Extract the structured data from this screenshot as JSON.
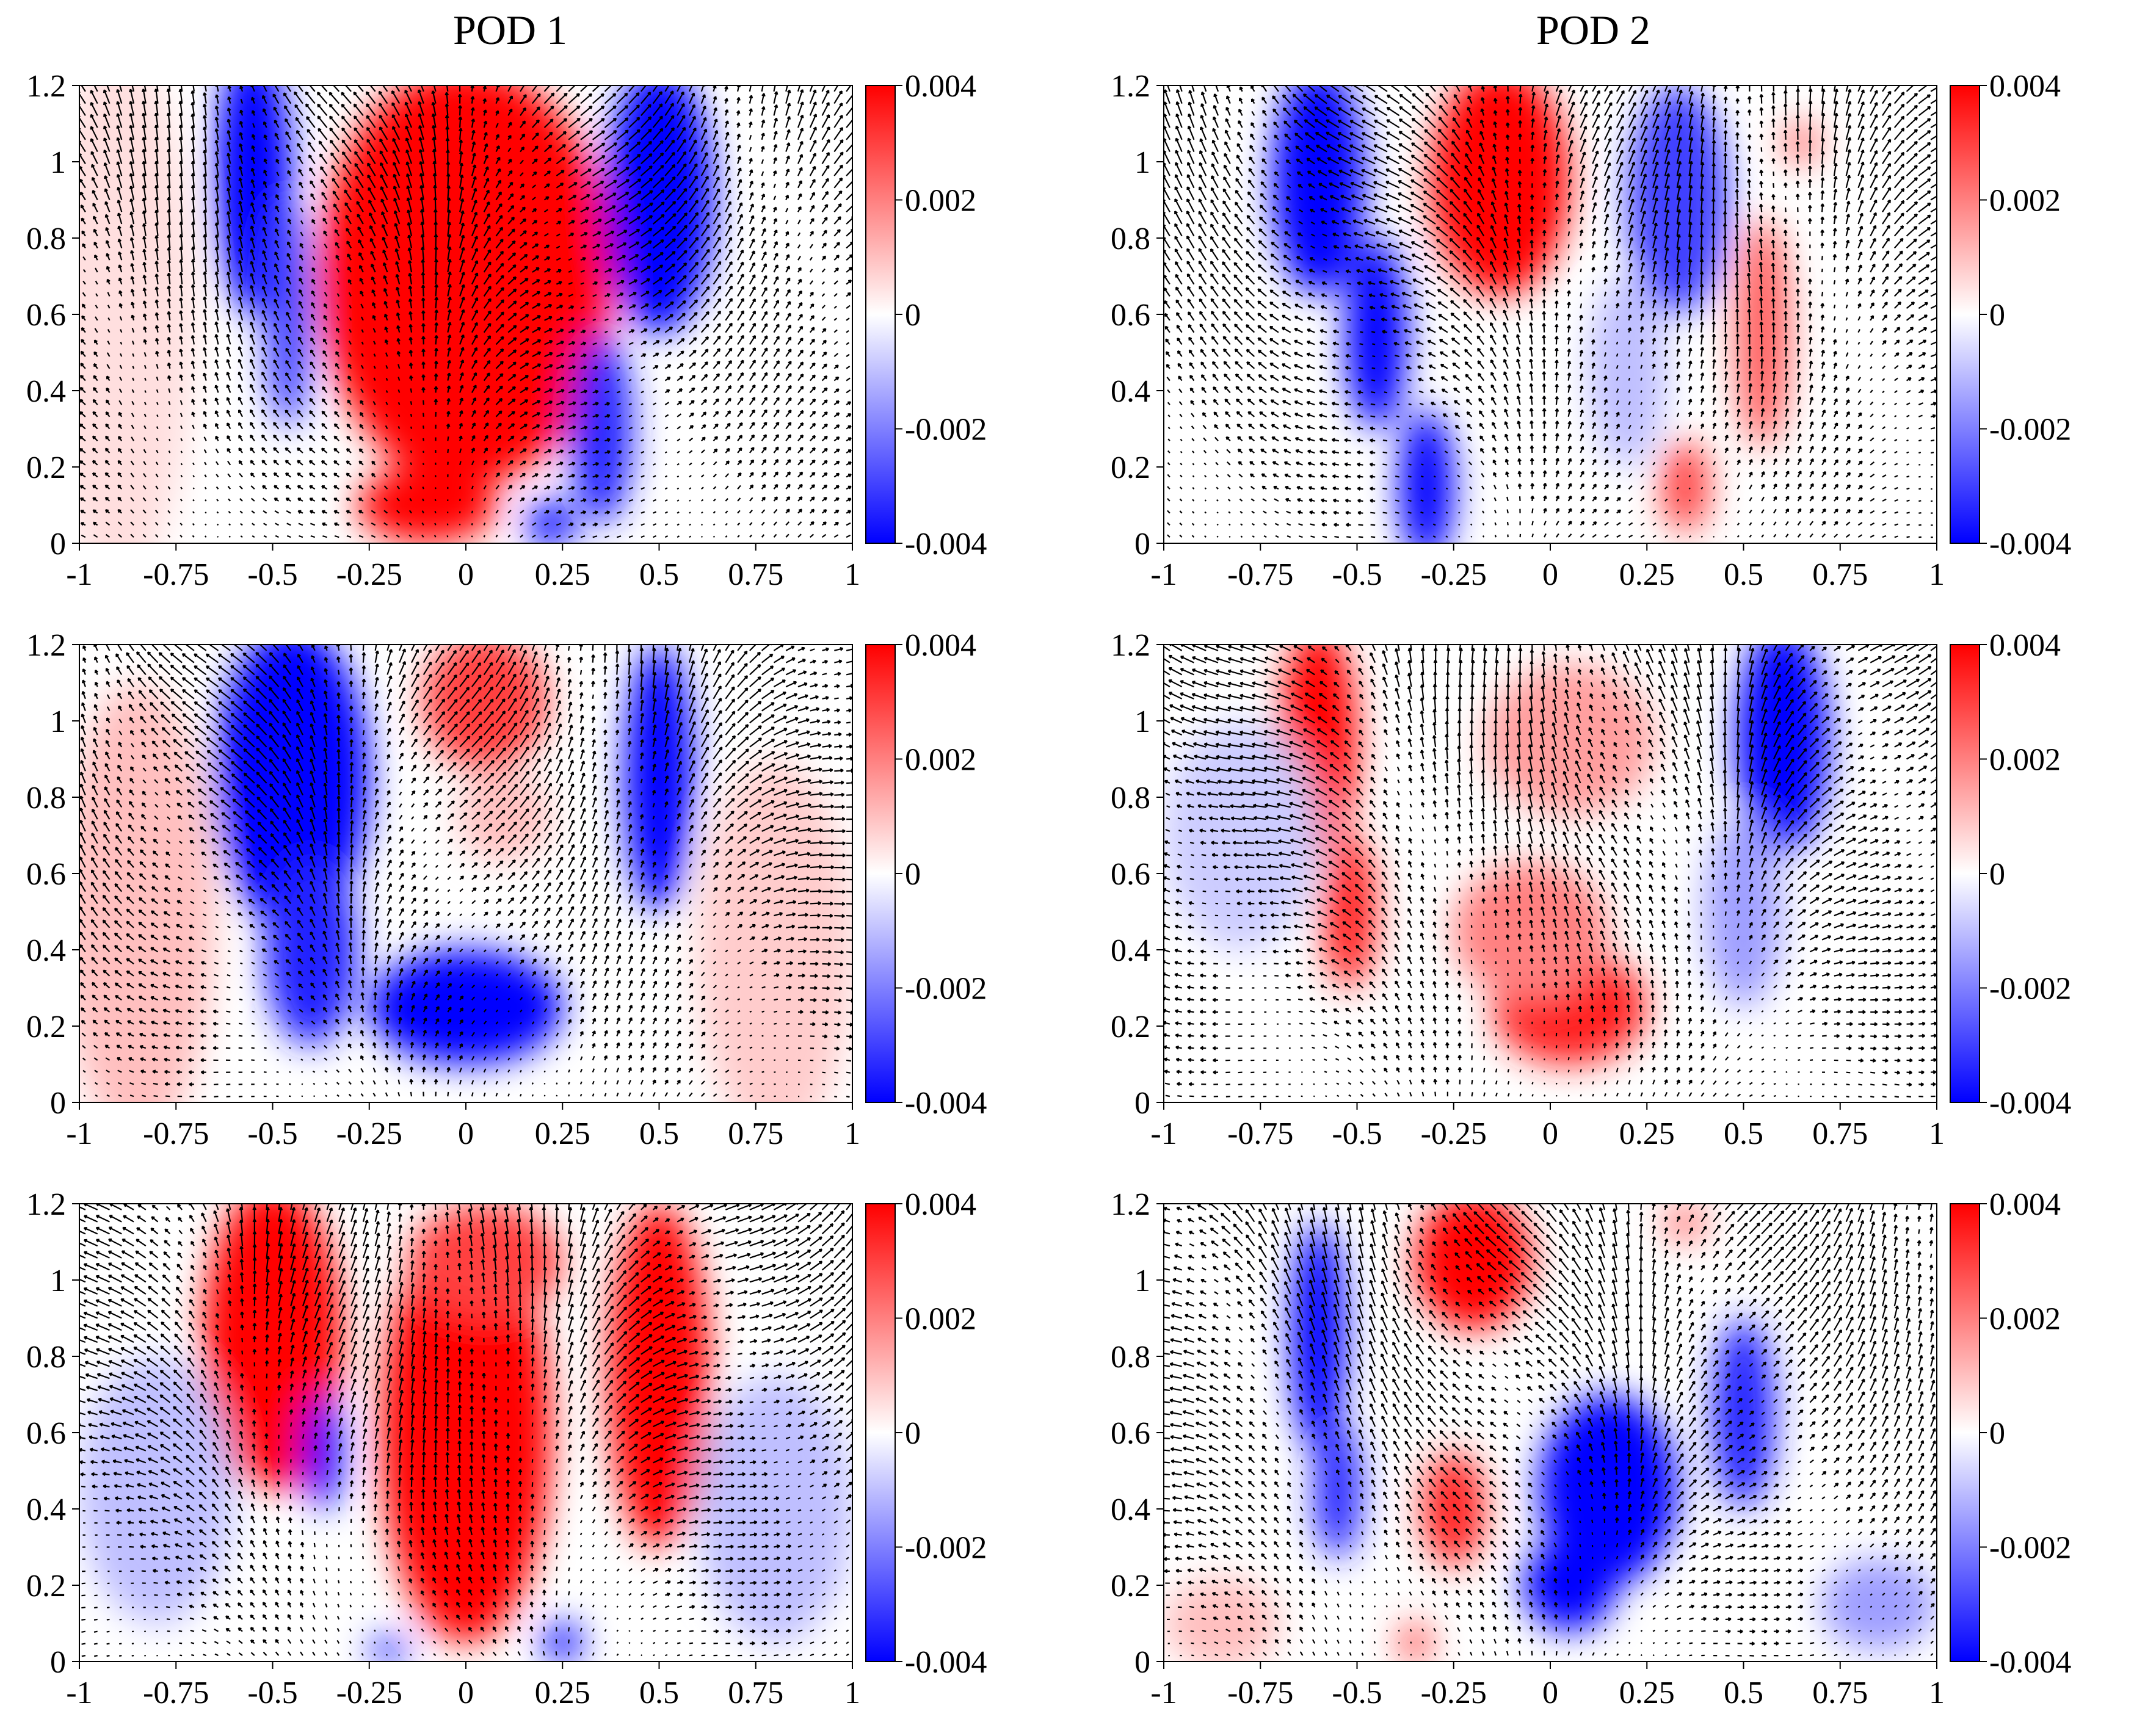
{
  "columns": [
    {
      "title": "POD 1"
    },
    {
      "title": "POD 2"
    }
  ],
  "chart_data": [
    {
      "type": "heatmap",
      "column": "POD 1",
      "row": 1,
      "xlim": [
        -1,
        1
      ],
      "ylim": [
        0,
        1.2
      ],
      "xticks": [
        "-1",
        "-0.75",
        "-0.5",
        "-0.25",
        "0",
        "0.25",
        "0.5",
        "0.75",
        "1"
      ],
      "yticks": [
        "0",
        "0.2",
        "0.4",
        "0.6",
        "0.8",
        "1",
        "1.2"
      ],
      "colorbar": {
        "range": [
          -0.004,
          0.004
        ],
        "ticks": [
          "0.004",
          "0.002",
          "0",
          "-0.002",
          "-0.004"
        ],
        "colormap": [
          "#0000ff",
          "#ffffff",
          "#ff0000"
        ]
      },
      "vectors": true,
      "blobs": [
        {
          "x": 0.0,
          "y": 0.7,
          "w": 0.38,
          "h": 0.55,
          "value": 0.004
        },
        {
          "x": -0.1,
          "y": 0.1,
          "w": 0.18,
          "h": 0.1,
          "value": 0.004
        },
        {
          "x": -0.55,
          "y": 0.95,
          "w": 0.1,
          "h": 0.35,
          "value": -0.004
        },
        {
          "x": -0.46,
          "y": 0.6,
          "w": 0.06,
          "h": 0.3,
          "value": -0.003
        },
        {
          "x": 0.5,
          "y": 0.9,
          "w": 0.14,
          "h": 0.35,
          "value": -0.004
        },
        {
          "x": 0.35,
          "y": 0.3,
          "w": 0.08,
          "h": 0.25,
          "value": -0.0035
        },
        {
          "x": 0.22,
          "y": 0.05,
          "w": 0.06,
          "h": 0.06,
          "value": -0.004
        },
        {
          "x": -0.9,
          "y": 0.6,
          "w": 0.2,
          "h": 0.7,
          "value": 0.0005
        }
      ]
    },
    {
      "type": "heatmap",
      "column": "POD 2",
      "row": 1,
      "xlim": [
        -1,
        1
      ],
      "ylim": [
        0,
        1.2
      ],
      "xticks": [
        "-1",
        "-0.75",
        "-0.5",
        "-0.25",
        "0",
        "0.25",
        "0.5",
        "0.75",
        "1"
      ],
      "yticks": [
        "0",
        "0.2",
        "0.4",
        "0.6",
        "0.8",
        "1",
        "1.2"
      ],
      "colorbar": {
        "range": [
          -0.004,
          0.004
        ],
        "ticks": [
          "0.004",
          "0.002",
          "0",
          "-0.002",
          "-0.004"
        ],
        "colormap": [
          "#0000ff",
          "#ffffff",
          "#ff0000"
        ]
      },
      "vectors": true,
      "blobs": [
        {
          "x": -0.13,
          "y": 0.95,
          "w": 0.18,
          "h": 0.3,
          "value": 0.004
        },
        {
          "x": -0.6,
          "y": 0.95,
          "w": 0.12,
          "h": 0.3,
          "value": -0.004
        },
        {
          "x": -0.45,
          "y": 0.55,
          "w": 0.08,
          "h": 0.25,
          "value": -0.004
        },
        {
          "x": -0.32,
          "y": 0.15,
          "w": 0.07,
          "h": 0.2,
          "value": -0.004
        },
        {
          "x": 0.33,
          "y": 0.9,
          "w": 0.13,
          "h": 0.3,
          "value": -0.003
        },
        {
          "x": 0.2,
          "y": 0.45,
          "w": 0.1,
          "h": 0.25,
          "value": -0.001
        },
        {
          "x": 0.55,
          "y": 0.55,
          "w": 0.07,
          "h": 0.3,
          "value": 0.0025
        },
        {
          "x": 0.35,
          "y": 0.15,
          "w": 0.06,
          "h": 0.12,
          "value": 0.003
        },
        {
          "x": 0.65,
          "y": 1.05,
          "w": 0.05,
          "h": 0.06,
          "value": 0.002
        }
      ]
    },
    {
      "type": "heatmap",
      "column": "POD 1",
      "row": 2,
      "xlim": [
        -1,
        1
      ],
      "ylim": [
        0,
        1.2
      ],
      "xticks": [
        "-1",
        "-0.75",
        "-0.5",
        "-0.25",
        "0",
        "0.25",
        "0.5",
        "0.75",
        "1"
      ],
      "yticks": [
        "0",
        "0.2",
        "0.4",
        "0.6",
        "0.8",
        "1",
        "1.2"
      ],
      "colorbar": {
        "range": [
          -0.004,
          0.004
        ],
        "ticks": [
          "0.004",
          "0.002",
          "0",
          "-0.002",
          "-0.004"
        ],
        "colormap": [
          "#0000ff",
          "#ffffff",
          "#ff0000"
        ]
      },
      "vectors": true,
      "blobs": [
        {
          "x": -0.45,
          "y": 0.85,
          "w": 0.2,
          "h": 0.4,
          "value": -0.004
        },
        {
          "x": -0.4,
          "y": 0.4,
          "w": 0.12,
          "h": 0.25,
          "value": -0.0035
        },
        {
          "x": 0.0,
          "y": 0.25,
          "w": 0.25,
          "h": 0.15,
          "value": -0.004
        },
        {
          "x": 0.5,
          "y": 0.85,
          "w": 0.09,
          "h": 0.35,
          "value": -0.004
        },
        {
          "x": 0.05,
          "y": 1.05,
          "w": 0.16,
          "h": 0.18,
          "value": 0.003
        },
        {
          "x": 0.1,
          "y": 0.75,
          "w": 0.12,
          "h": 0.12,
          "value": 0.001
        },
        {
          "x": -0.85,
          "y": 0.5,
          "w": 0.2,
          "h": 0.6,
          "value": 0.001
        },
        {
          "x": 0.8,
          "y": 0.4,
          "w": 0.2,
          "h": 0.5,
          "value": 0.0008
        }
      ]
    },
    {
      "type": "heatmap",
      "column": "POD 2",
      "row": 2,
      "xlim": [
        -1,
        1
      ],
      "ylim": [
        0,
        1.2
      ],
      "xticks": [
        "-1",
        "-0.75",
        "-0.5",
        "-0.25",
        "0",
        "0.25",
        "0.5",
        "0.75",
        "1"
      ],
      "yticks": [
        "0",
        "0.2",
        "0.4",
        "0.6",
        "0.8",
        "1",
        "1.2"
      ],
      "colorbar": {
        "range": [
          -0.004,
          0.004
        ],
        "ticks": [
          "0.004",
          "0.002",
          "0",
          "-0.002",
          "-0.004"
        ],
        "colormap": [
          "#0000ff",
          "#ffffff",
          "#ff0000"
        ]
      },
      "vectors": true,
      "blobs": [
        {
          "x": -0.6,
          "y": 0.95,
          "w": 0.1,
          "h": 0.3,
          "value": 0.004
        },
        {
          "x": -0.52,
          "y": 0.5,
          "w": 0.07,
          "h": 0.2,
          "value": 0.0035
        },
        {
          "x": 0.05,
          "y": 0.25,
          "w": 0.2,
          "h": 0.15,
          "value": 0.0035
        },
        {
          "x": -0.05,
          "y": 0.45,
          "w": 0.2,
          "h": 0.18,
          "value": 0.002
        },
        {
          "x": 0.05,
          "y": 0.95,
          "w": 0.22,
          "h": 0.2,
          "value": 0.0015
        },
        {
          "x": 0.6,
          "y": 0.95,
          "w": 0.12,
          "h": 0.3,
          "value": -0.004
        },
        {
          "x": 0.5,
          "y": 0.5,
          "w": 0.1,
          "h": 0.25,
          "value": -0.0015
        },
        {
          "x": -0.8,
          "y": 0.7,
          "w": 0.2,
          "h": 0.3,
          "value": -0.0008
        }
      ]
    },
    {
      "type": "heatmap",
      "column": "POD 1",
      "row": 3,
      "xlim": [
        -1,
        1
      ],
      "ylim": [
        0,
        1.2
      ],
      "xticks": [
        "-1",
        "-0.75",
        "-0.5",
        "-0.25",
        "0",
        "0.25",
        "0.5",
        "0.75",
        "1"
      ],
      "yticks": [
        "0",
        "0.2",
        "0.4",
        "0.6",
        "0.8",
        "1",
        "1.2"
      ],
      "colorbar": {
        "range": [
          -0.004,
          0.004
        ],
        "ticks": [
          "0.004",
          "0.002",
          "0",
          "-0.002",
          "-0.004"
        ],
        "colormap": [
          "#0000ff",
          "#ffffff",
          "#ff0000"
        ]
      },
      "vectors": true,
      "blobs": [
        {
          "x": -0.5,
          "y": 0.85,
          "w": 0.18,
          "h": 0.4,
          "value": 0.004
        },
        {
          "x": 0.0,
          "y": 0.6,
          "w": 0.22,
          "h": 0.55,
          "value": 0.004
        },
        {
          "x": 0.5,
          "y": 0.75,
          "w": 0.13,
          "h": 0.45,
          "value": 0.004
        },
        {
          "x": 0.05,
          "y": 1.05,
          "w": 0.2,
          "h": 0.15,
          "value": 0.003
        },
        {
          "x": -0.37,
          "y": 0.55,
          "w": 0.05,
          "h": 0.15,
          "value": -0.004
        },
        {
          "x": -0.8,
          "y": 0.45,
          "w": 0.2,
          "h": 0.35,
          "value": -0.001
        },
        {
          "x": 0.8,
          "y": 0.4,
          "w": 0.2,
          "h": 0.35,
          "value": -0.001
        },
        {
          "x": -0.2,
          "y": 0.03,
          "w": 0.05,
          "h": 0.03,
          "value": -0.004
        },
        {
          "x": 0.25,
          "y": 0.05,
          "w": 0.05,
          "h": 0.05,
          "value": -0.004
        }
      ]
    },
    {
      "type": "heatmap",
      "column": "POD 2",
      "row": 3,
      "xlim": [
        -1,
        1
      ],
      "ylim": [
        0,
        1.2
      ],
      "xticks": [
        "-1",
        "-0.75",
        "-0.5",
        "-0.25",
        "0",
        "0.25",
        "0.5",
        "0.75",
        "1"
      ],
      "yticks": [
        "0",
        "0.2",
        "0.4",
        "0.6",
        "0.8",
        "1",
        "1.2"
      ],
      "colorbar": {
        "range": [
          -0.004,
          0.004
        ],
        "ticks": [
          "0.004",
          "0.002",
          "0",
          "-0.002",
          "-0.004"
        ],
        "colormap": [
          "#0000ff",
          "#ffffff",
          "#ff0000"
        ]
      },
      "vectors": true,
      "blobs": [
        {
          "x": -0.6,
          "y": 0.85,
          "w": 0.07,
          "h": 0.3,
          "value": -0.004
        },
        {
          "x": -0.55,
          "y": 0.45,
          "w": 0.06,
          "h": 0.18,
          "value": -0.0035
        },
        {
          "x": 0.15,
          "y": 0.45,
          "w": 0.18,
          "h": 0.25,
          "value": -0.004
        },
        {
          "x": 0.05,
          "y": 0.2,
          "w": 0.12,
          "h": 0.12,
          "value": -0.004
        },
        {
          "x": 0.5,
          "y": 0.65,
          "w": 0.08,
          "h": 0.25,
          "value": -0.0035
        },
        {
          "x": -0.2,
          "y": 1.05,
          "w": 0.15,
          "h": 0.18,
          "value": 0.004
        },
        {
          "x": -0.25,
          "y": 0.4,
          "w": 0.08,
          "h": 0.15,
          "value": 0.0035
        },
        {
          "x": -0.35,
          "y": 0.05,
          "w": 0.04,
          "h": 0.05,
          "value": 0.003
        },
        {
          "x": 0.35,
          "y": 1.15,
          "w": 0.06,
          "h": 0.05,
          "value": 0.002
        },
        {
          "x": -0.85,
          "y": 0.1,
          "w": 0.15,
          "h": 0.12,
          "value": 0.001
        },
        {
          "x": 0.85,
          "y": 0.15,
          "w": 0.15,
          "h": 0.12,
          "value": -0.0015
        }
      ]
    }
  ]
}
